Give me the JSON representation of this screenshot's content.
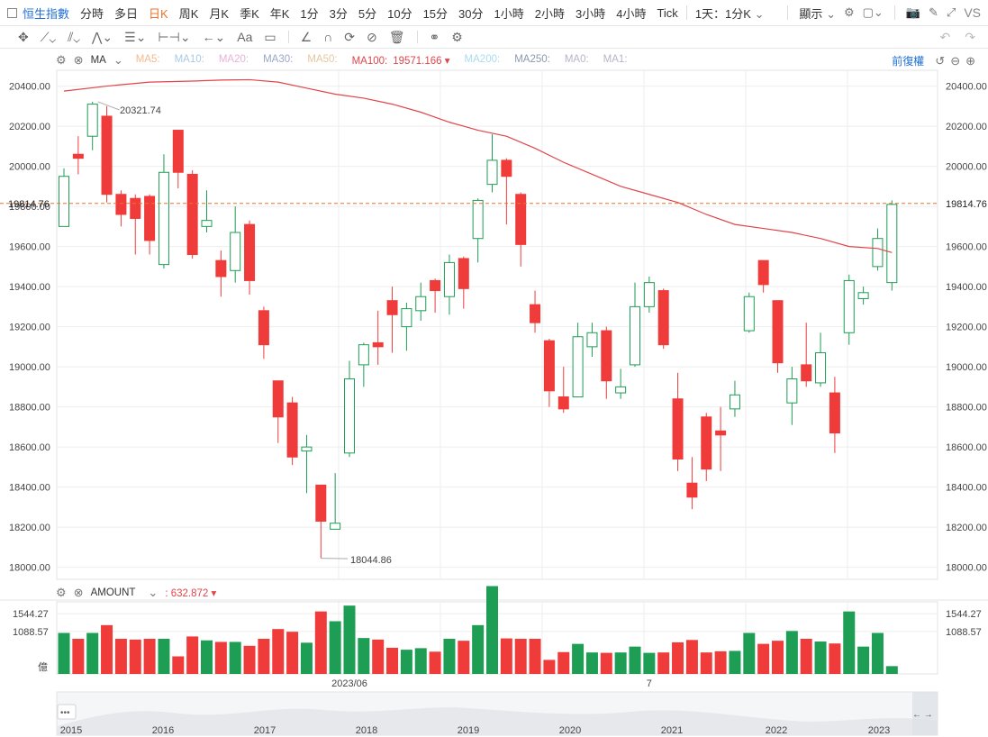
{
  "toolbar": {
    "symbol": "恒生指數",
    "intervals": [
      "分時",
      "多日",
      "日K",
      "周K",
      "月K",
      "季K",
      "年K",
      "1分",
      "3分",
      "5分",
      "10分",
      "15分",
      "30分",
      "1小時",
      "2小時",
      "3小時",
      "4小時",
      "Tick"
    ],
    "active_interval": "日K",
    "range_label": "1天：1分K",
    "display_label": "顯示",
    "vs_label": "VS",
    "adjust_label": "前復權"
  },
  "indicators": {
    "main_name": "MA",
    "ma_items": [
      {
        "label": "MA5:",
        "color": "#f5b98c"
      },
      {
        "label": "MA10:",
        "color": "#a7cbe8"
      },
      {
        "label": "MA20:",
        "color": "#e8b3d8"
      },
      {
        "label": "MA30:",
        "color": "#9aa6c8"
      },
      {
        "label": "MA50:",
        "color": "#e6c8a0"
      },
      {
        "label": "MA100:",
        "color": "#e0454a",
        "value": "19571.166"
      },
      {
        "label": "MA200:",
        "color": "#a8dcef"
      },
      {
        "label": "MA250:",
        "color": "#8d99ad"
      },
      {
        "label": "MA0:",
        "color": "#b9b3c9"
      },
      {
        "label": "MA1:",
        "color": "#b9b3c9"
      }
    ],
    "volume_name": "AMOUNT",
    "volume_value": "632.872"
  },
  "colors": {
    "up": "#1d9e54",
    "down": "#f03b3b",
    "ma100": "#e0454a",
    "price_line": "#e8742f"
  },
  "chart_data": {
    "type": "candlestick",
    "price_axis": {
      "ticks": [
        18000,
        18200,
        18400,
        18600,
        18800,
        19000,
        19200,
        19400,
        19600,
        19800,
        20000,
        20200,
        20400
      ],
      "ylim": [
        17940,
        20470
      ]
    },
    "last_price": "19814.76",
    "high_label": "20321.74",
    "low_label": "18044.86",
    "candles": [
      {
        "o": 19700,
        "c": 19950,
        "h": 19990,
        "l": 19700
      },
      {
        "o": 20060,
        "c": 20040,
        "h": 20150,
        "l": 19960
      },
      {
        "o": 20150,
        "c": 20310,
        "h": 20322,
        "l": 20080
      },
      {
        "o": 20250,
        "c": 19860,
        "h": 20300,
        "l": 19820
      },
      {
        "o": 19860,
        "c": 19760,
        "h": 19880,
        "l": 19700
      },
      {
        "o": 19840,
        "c": 19740,
        "h": 19860,
        "l": 19560
      },
      {
        "o": 19850,
        "c": 19630,
        "h": 19860,
        "l": 19560
      },
      {
        "o": 19510,
        "c": 19970,
        "h": 20060,
        "l": 19490
      },
      {
        "o": 20180,
        "c": 19970,
        "h": 20180,
        "l": 19890
      },
      {
        "o": 19960,
        "c": 19560,
        "h": 19980,
        "l": 19540
      },
      {
        "o": 19700,
        "c": 19730,
        "h": 19880,
        "l": 19670
      },
      {
        "o": 19530,
        "c": 19450,
        "h": 19580,
        "l": 19350
      },
      {
        "o": 19480,
        "c": 19670,
        "h": 19800,
        "l": 19420
      },
      {
        "o": 19710,
        "c": 19430,
        "h": 19730,
        "l": 19360
      },
      {
        "o": 19280,
        "c": 19110,
        "h": 19300,
        "l": 19040
      },
      {
        "o": 18930,
        "c": 18750,
        "h": 18930,
        "l": 18620
      },
      {
        "o": 18820,
        "c": 18550,
        "h": 18850,
        "l": 18510
      },
      {
        "o": 18580,
        "c": 18600,
        "h": 18660,
        "l": 18370
      },
      {
        "o": 18410,
        "c": 18230,
        "h": 18410,
        "l": 18045
      },
      {
        "o": 18190,
        "c": 18220,
        "h": 18470,
        "l": 18190
      },
      {
        "o": 18570,
        "c": 18940,
        "h": 19030,
        "l": 18550
      },
      {
        "o": 19010,
        "c": 19110,
        "h": 19120,
        "l": 18900
      },
      {
        "o": 19120,
        "c": 19100,
        "h": 19280,
        "l": 19010
      },
      {
        "o": 19330,
        "c": 19260,
        "h": 19400,
        "l": 19070
      },
      {
        "o": 19200,
        "c": 19290,
        "h": 19320,
        "l": 19080
      },
      {
        "o": 19280,
        "c": 19350,
        "h": 19420,
        "l": 19230
      },
      {
        "o": 19430,
        "c": 19380,
        "h": 19440,
        "l": 19270
      },
      {
        "o": 19350,
        "c": 19520,
        "h": 19560,
        "l": 19260
      },
      {
        "o": 19540,
        "c": 19390,
        "h": 19550,
        "l": 19290
      },
      {
        "o": 19640,
        "c": 19830,
        "h": 19840,
        "l": 19520
      },
      {
        "o": 19910,
        "c": 20030,
        "h": 20160,
        "l": 19870
      },
      {
        "o": 20030,
        "c": 19950,
        "h": 20040,
        "l": 19710
      },
      {
        "o": 19860,
        "c": 19610,
        "h": 19870,
        "l": 19500
      },
      {
        "o": 19310,
        "c": 19220,
        "h": 19380,
        "l": 19170
      },
      {
        "o": 19130,
        "c": 18880,
        "h": 19140,
        "l": 18800
      },
      {
        "o": 18850,
        "c": 18790,
        "h": 19000,
        "l": 18770
      },
      {
        "o": 18850,
        "c": 19150,
        "h": 19220,
        "l": 18850
      },
      {
        "o": 19100,
        "c": 19170,
        "h": 19220,
        "l": 19050
      },
      {
        "o": 19180,
        "c": 18930,
        "h": 19200,
        "l": 18840
      },
      {
        "o": 18870,
        "c": 18900,
        "h": 18990,
        "l": 18840
      },
      {
        "o": 19010,
        "c": 19300,
        "h": 19420,
        "l": 19000
      },
      {
        "o": 19300,
        "c": 19420,
        "h": 19450,
        "l": 19270
      },
      {
        "o": 19380,
        "c": 19110,
        "h": 19390,
        "l": 19090
      },
      {
        "o": 18840,
        "c": 18540,
        "h": 18970,
        "l": 18480
      },
      {
        "o": 18420,
        "c": 18350,
        "h": 18550,
        "l": 18290
      },
      {
        "o": 18750,
        "c": 18490,
        "h": 18770,
        "l": 18430
      },
      {
        "o": 18680,
        "c": 18660,
        "h": 18800,
        "l": 18480
      },
      {
        "o": 18790,
        "c": 18860,
        "h": 18930,
        "l": 18750
      },
      {
        "o": 19180,
        "c": 19350,
        "h": 19370,
        "l": 19170
      },
      {
        "o": 19530,
        "c": 19410,
        "h": 19530,
        "l": 19370
      },
      {
        "o": 19330,
        "c": 19020,
        "h": 19330,
        "l": 18970
      },
      {
        "o": 18820,
        "c": 18940,
        "h": 19000,
        "l": 18710
      },
      {
        "o": 19010,
        "c": 18930,
        "h": 19220,
        "l": 18900
      },
      {
        "o": 18920,
        "c": 19070,
        "h": 19170,
        "l": 18900
      },
      {
        "o": 18870,
        "c": 18670,
        "h": 18950,
        "l": 18570
      },
      {
        "o": 19170,
        "c": 19430,
        "h": 19460,
        "l": 19110
      },
      {
        "o": 19340,
        "c": 19370,
        "h": 19400,
        "l": 19310
      },
      {
        "o": 19500,
        "c": 19640,
        "h": 19690,
        "l": 19480
      },
      {
        "o": 19420,
        "c": 19810,
        "h": 19830,
        "l": 19380
      }
    ],
    "ma100": [
      [
        0,
        20375
      ],
      [
        3,
        20400
      ],
      [
        6,
        20420
      ],
      [
        9,
        20425
      ],
      [
        11,
        20430
      ],
      [
        13,
        20432
      ],
      [
        15,
        20420
      ],
      [
        17,
        20390
      ],
      [
        19,
        20360
      ],
      [
        21,
        20340
      ],
      [
        23,
        20310
      ],
      [
        25,
        20270
      ],
      [
        27,
        20220
      ],
      [
        29,
        20180
      ],
      [
        31,
        20150
      ],
      [
        33,
        20090
      ],
      [
        35,
        20020
      ],
      [
        37,
        19960
      ],
      [
        39,
        19900
      ],
      [
        41,
        19860
      ],
      [
        43,
        19820
      ],
      [
        45,
        19760
      ],
      [
        47,
        19710
      ],
      [
        49,
        19690
      ],
      [
        51,
        19670
      ],
      [
        53,
        19640
      ],
      [
        55,
        19600
      ],
      [
        57,
        19590
      ],
      [
        58,
        19570
      ]
    ],
    "amount_axis": {
      "ticks": [
        {
          "value": 1544.27,
          "label": "1544.27"
        },
        {
          "value": 1088.57,
          "label": "1088.57"
        }
      ],
      "unit_label": "億",
      "ylim": [
        0,
        1800
      ]
    },
    "amounts": [
      1050,
      900,
      1050,
      1250,
      900,
      880,
      900,
      900,
      450,
      960,
      860,
      820,
      820,
      720,
      900,
      1150,
      1080,
      800,
      1600,
      1350,
      1750,
      920,
      880,
      670,
      620,
      660,
      570,
      900,
      850,
      1250,
      2250,
      910,
      900,
      900,
      360,
      560,
      770,
      550,
      540,
      550,
      700,
      540,
      550,
      810,
      870,
      550,
      580,
      590,
      1050,
      770,
      850,
      1100,
      900,
      830,
      780,
      1600,
      700,
      1050,
      200
    ],
    "date_labels": [
      {
        "index": 20,
        "label": "2023/06"
      },
      {
        "index": 41,
        "label": "7"
      }
    ],
    "navigator_years": [
      "2015",
      "2016",
      "2017",
      "2018",
      "2019",
      "2020",
      "2021",
      "2022",
      "2023"
    ],
    "navigator_menu": "•••",
    "navigator_arrows": "← →"
  }
}
